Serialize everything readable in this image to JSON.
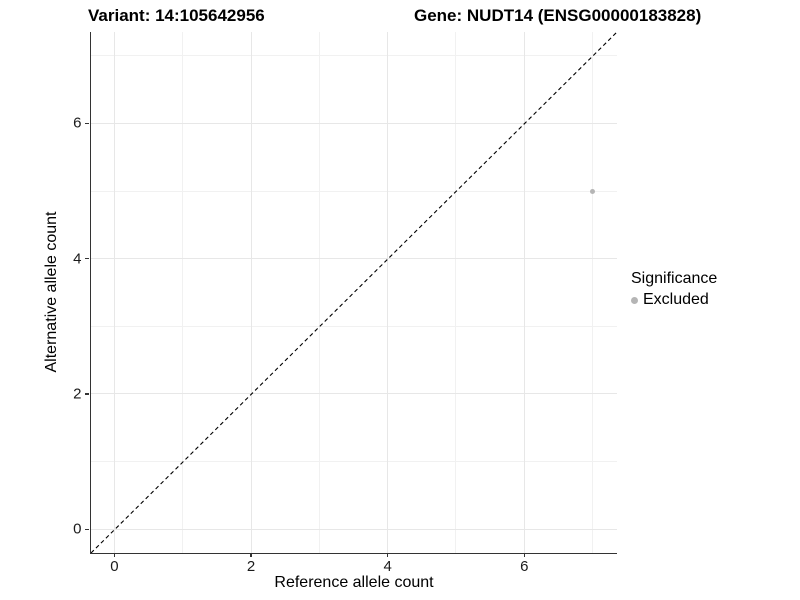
{
  "titles": {
    "variant": "Variant: 14:105642956",
    "gene": "Gene: NUDT14 (ENSG00000183828)"
  },
  "chart_data": {
    "type": "scatter",
    "title": "Variant: 14:105642956  /  Gene: NUDT14 (ENSG00000183828)",
    "xlabel": "Reference allele count",
    "ylabel": "Alternative allele count",
    "xlim": [
      -0.35,
      7.35
    ],
    "ylim": [
      -0.35,
      7.35
    ],
    "x_ticks": [
      0,
      2,
      4,
      6
    ],
    "y_ticks": [
      0,
      2,
      4,
      6
    ],
    "x_minor_ticks": [
      1,
      3,
      5,
      7
    ],
    "y_minor_ticks": [
      1,
      3,
      5,
      7
    ],
    "grid": true,
    "series": [
      {
        "name": "Excluded",
        "points": [
          {
            "x": 7,
            "y": 5
          }
        ],
        "color": "#b5b5b5"
      }
    ],
    "identity_line": {
      "slope": 1,
      "intercept": 0,
      "style": "dashed",
      "color": "#000000"
    },
    "legend": {
      "title": "Significance",
      "position": "right",
      "items": [
        {
          "label": "Excluded",
          "color": "#b5b5b5"
        }
      ]
    }
  },
  "colors": {
    "background": "#ffffff",
    "axis_line": "#333333",
    "grid_major": "#e7e7e7",
    "grid_minor": "#f1f1f1",
    "tick_text": "#1a1a1a",
    "point": "#b5b5b5"
  }
}
